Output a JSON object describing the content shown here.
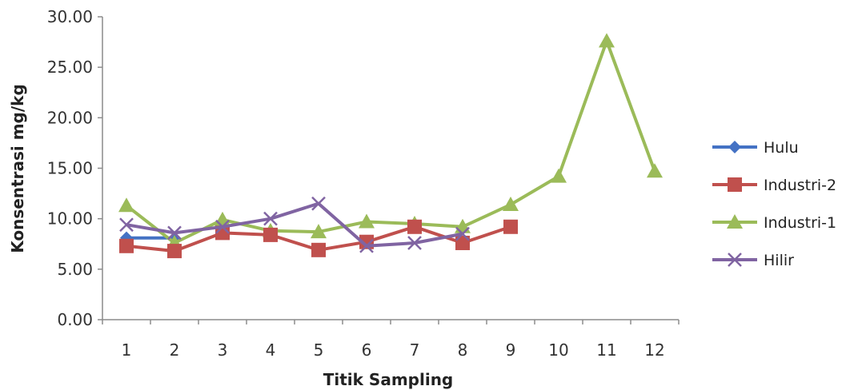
{
  "chart_data": {
    "type": "line",
    "xlabel": "Titik Sampling",
    "ylabel": "Konsentrasi mg/kg",
    "categories": [
      "1",
      "2",
      "3",
      "4",
      "5",
      "6",
      "7",
      "8",
      "9",
      "10",
      "11",
      "12"
    ],
    "ylim": [
      0,
      30
    ],
    "yticks": [
      "0.00",
      "5.00",
      "10.00",
      "15.00",
      "20.00",
      "25.00",
      "30.00"
    ],
    "grid": false,
    "legend_position": "right",
    "series": [
      {
        "name": "Hulu",
        "color": "#4472C4",
        "marker": "diamond",
        "values": [
          8.1,
          8.1,
          null,
          null,
          null,
          null,
          null,
          null,
          null,
          null,
          null,
          null
        ]
      },
      {
        "name": "Industri-2",
        "color": "#C0504D",
        "marker": "square",
        "values": [
          7.3,
          6.8,
          8.6,
          8.4,
          6.9,
          7.7,
          9.2,
          7.6,
          9.2,
          null,
          null,
          null
        ]
      },
      {
        "name": "Industri-1",
        "color": "#9BBB59",
        "marker": "triangle",
        "values": [
          11.3,
          7.6,
          9.9,
          8.8,
          8.7,
          9.7,
          9.5,
          9.2,
          11.4,
          14.2,
          27.6,
          14.7
        ]
      },
      {
        "name": "Hilir",
        "color": "#8064A2",
        "marker": "x",
        "values": [
          9.4,
          8.6,
          9.2,
          10.0,
          11.5,
          7.3,
          7.6,
          8.5,
          null,
          null,
          null,
          null
        ]
      }
    ]
  }
}
